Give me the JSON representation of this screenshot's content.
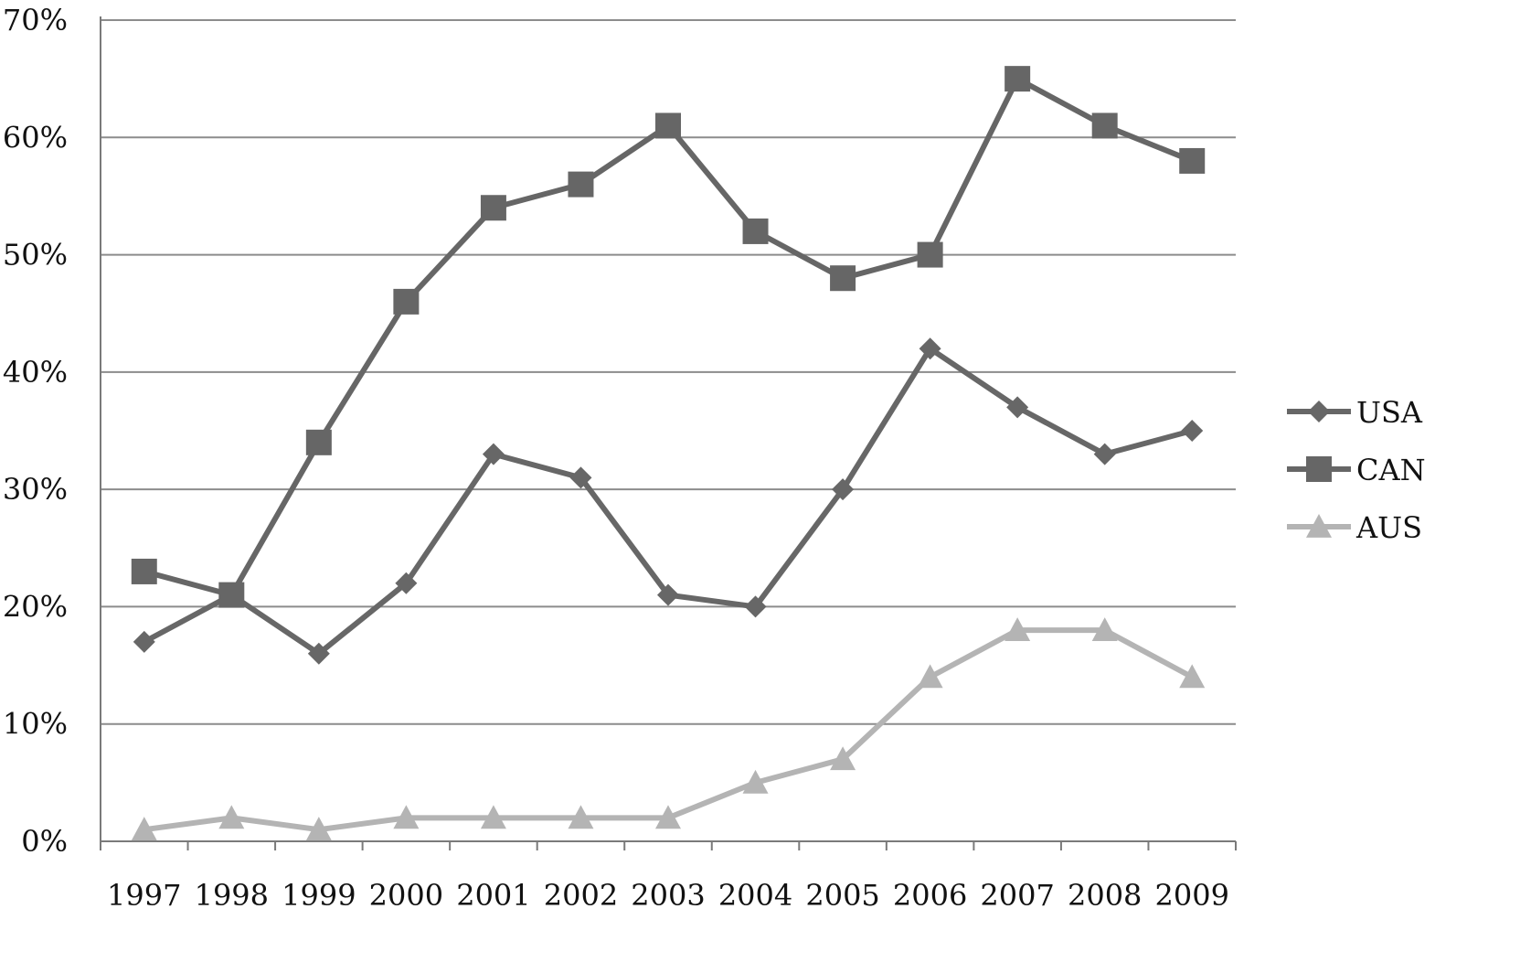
{
  "chart_data": {
    "type": "line",
    "title": "",
    "xlabel": "",
    "ylabel": "",
    "categories": [
      "1997",
      "1998",
      "1999",
      "2000",
      "2001",
      "2002",
      "2003",
      "2004",
      "2005",
      "2006",
      "2007",
      "2008",
      "2009"
    ],
    "y_ticks": [
      "0%",
      "10%",
      "20%",
      "30%",
      "40%",
      "50%",
      "60%",
      "70%"
    ],
    "ylim": [
      0,
      70
    ],
    "y_unit": "%",
    "grid": "horizontal",
    "legend_position": "right",
    "series": [
      {
        "name": "USA",
        "marker": "diamond",
        "color": "#676767",
        "values": [
          17,
          21,
          16,
          22,
          33,
          31,
          21,
          20,
          30,
          42,
          37,
          33,
          35
        ]
      },
      {
        "name": "CAN",
        "marker": "square",
        "color": "#666666",
        "values": [
          23,
          21,
          34,
          46,
          54,
          56,
          61,
          52,
          48,
          50,
          65,
          61,
          58
        ]
      },
      {
        "name": "AUS",
        "marker": "triangle",
        "color": "#b4b4b4",
        "values": [
          1,
          2,
          1,
          2,
          2,
          2,
          2,
          5,
          7,
          14,
          18,
          18,
          14
        ]
      }
    ]
  }
}
